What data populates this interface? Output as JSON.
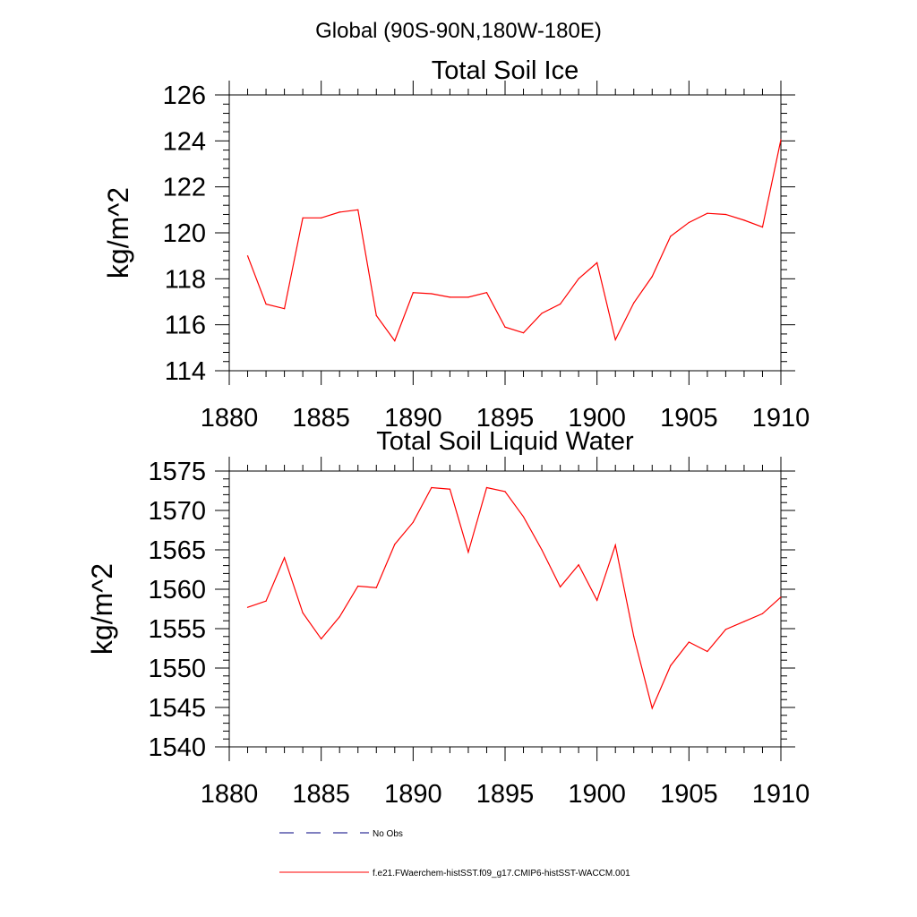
{
  "figure": {
    "suptitle": "Global (90S-90N,180W-180E)"
  },
  "chart_data": [
    {
      "type": "line",
      "title": "Total Soil Ice",
      "xlabel": "",
      "ylabel": "kg/m^2",
      "xlim": [
        1880,
        1910
      ],
      "ylim": [
        114,
        126
      ],
      "xticks": [
        1880,
        1885,
        1890,
        1895,
        1900,
        1905,
        1910
      ],
      "yticks": [
        114,
        116,
        118,
        120,
        122,
        124,
        126
      ],
      "grid": false,
      "series": [
        {
          "name": "f.e21.FWaerchem-histSST.f09_g17.CMIP6-histSST-WACCM.001",
          "color": "#ff0000",
          "x": [
            1881,
            1882,
            1883,
            1884,
            1885,
            1886,
            1887,
            1888,
            1889,
            1890,
            1891,
            1892,
            1893,
            1894,
            1895,
            1896,
            1897,
            1898,
            1899,
            1900,
            1901,
            1902,
            1903,
            1904,
            1905,
            1906,
            1907,
            1908,
            1909,
            1910
          ],
          "y": [
            119.0,
            116.9,
            116.7,
            120.65,
            120.65,
            120.9,
            121.0,
            116.4,
            115.3,
            117.4,
            117.35,
            117.2,
            117.2,
            117.4,
            115.9,
            115.65,
            116.5,
            116.9,
            118.0,
            118.7,
            115.35,
            116.95,
            118.1,
            119.85,
            120.45,
            120.85,
            120.8,
            120.55,
            120.25,
            124.05
          ]
        }
      ]
    },
    {
      "type": "line",
      "title": "Total Soil Liquid Water",
      "xlabel": "",
      "ylabel": "kg/m^2",
      "xlim": [
        1880,
        1910
      ],
      "ylim": [
        1540,
        1575
      ],
      "xticks": [
        1880,
        1885,
        1890,
        1895,
        1900,
        1905,
        1910
      ],
      "yticks": [
        1540,
        1545,
        1550,
        1555,
        1560,
        1565,
        1570,
        1575
      ],
      "grid": false,
      "series": [
        {
          "name": "f.e21.FWaerchem-histSST.f09_g17.CMIP6-histSST-WACCM.001",
          "color": "#ff0000",
          "x": [
            1881,
            1882,
            1883,
            1884,
            1885,
            1886,
            1887,
            1888,
            1889,
            1890,
            1891,
            1892,
            1893,
            1894,
            1895,
            1896,
            1897,
            1898,
            1899,
            1900,
            1901,
            1902,
            1903,
            1904,
            1905,
            1906,
            1907,
            1908,
            1909,
            1910
          ],
          "y": [
            1557.7,
            1558.5,
            1564.0,
            1557.0,
            1553.7,
            1556.5,
            1560.4,
            1560.2,
            1565.7,
            1568.5,
            1572.9,
            1572.7,
            1564.7,
            1572.9,
            1572.4,
            1569.2,
            1565.0,
            1560.3,
            1563.1,
            1558.6,
            1565.6,
            1554.0,
            1544.9,
            1550.3,
            1553.3,
            1552.1,
            1554.9,
            1555.9,
            1556.9,
            1559.0
          ]
        }
      ]
    }
  ],
  "legend": {
    "placement": "bottom",
    "entries": [
      {
        "label": "No Obs",
        "color": "#000080",
        "dashed": true
      },
      {
        "label": "f.e21.FWaerchem-histSST.f09_g17.CMIP6-histSST-WACCM.001",
        "color": "#ff0000",
        "dashed": false
      }
    ]
  }
}
